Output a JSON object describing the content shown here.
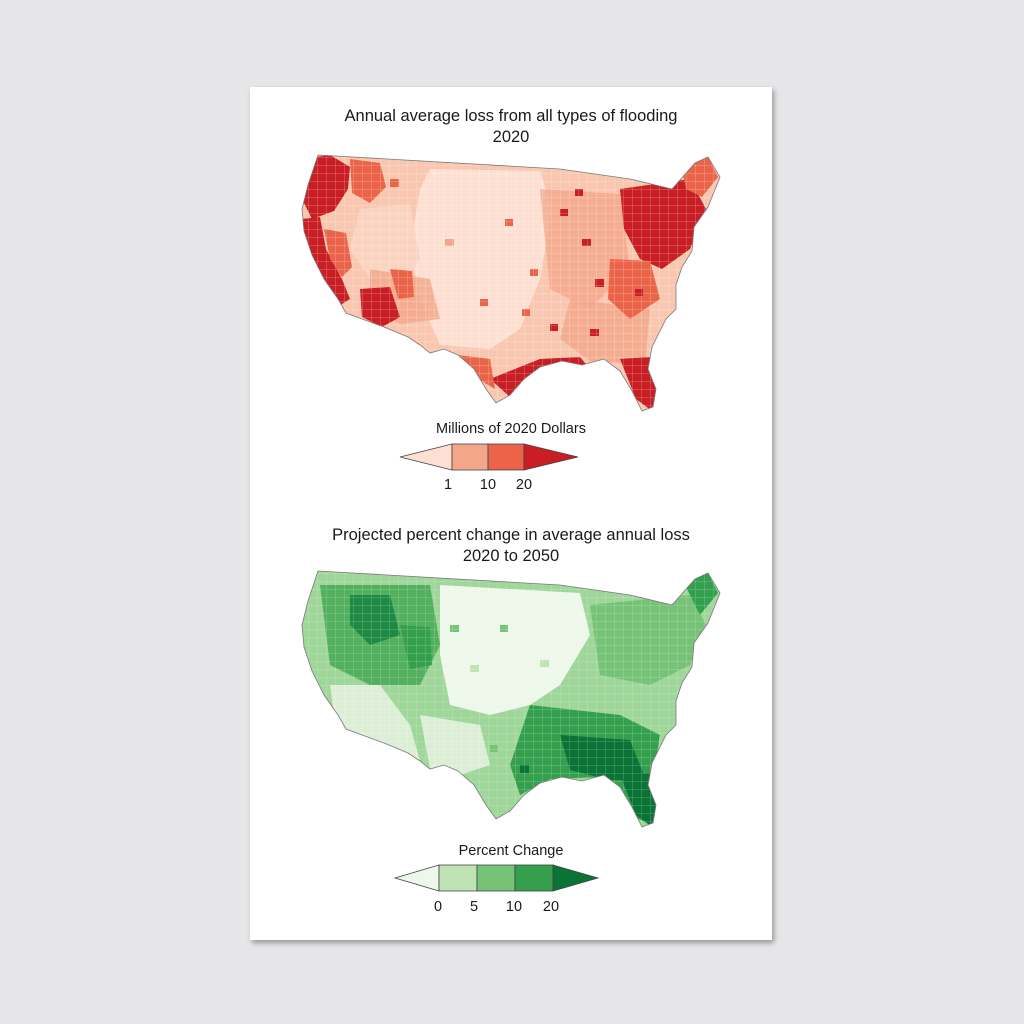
{
  "loss_map": {
    "title_line1": "Annual average loss from all types of flooding",
    "title_line2": "2020",
    "legend_title": "Millions of 2020 Dollars",
    "legend_ticks": [
      "1",
      "10",
      "20"
    ],
    "legend_colors": [
      "#fde0d2",
      "#f4a68a",
      "#eb6449",
      "#c81e24"
    ],
    "land_color": "#f9c6b0",
    "dark_color": "#c81e24"
  },
  "change_map": {
    "title_line1": "Projected percent change in average annual loss",
    "title_line2": "2020 to 2050",
    "legend_title": "Percent Change",
    "legend_ticks": [
      "0",
      "5",
      "10",
      "20"
    ],
    "legend_colors": [
      "#eef8ea",
      "#bfe3b5",
      "#76c378",
      "#34a04e",
      "#0a7436"
    ],
    "land_color": "#9fd69a",
    "dark_color": "#0a7436"
  }
}
